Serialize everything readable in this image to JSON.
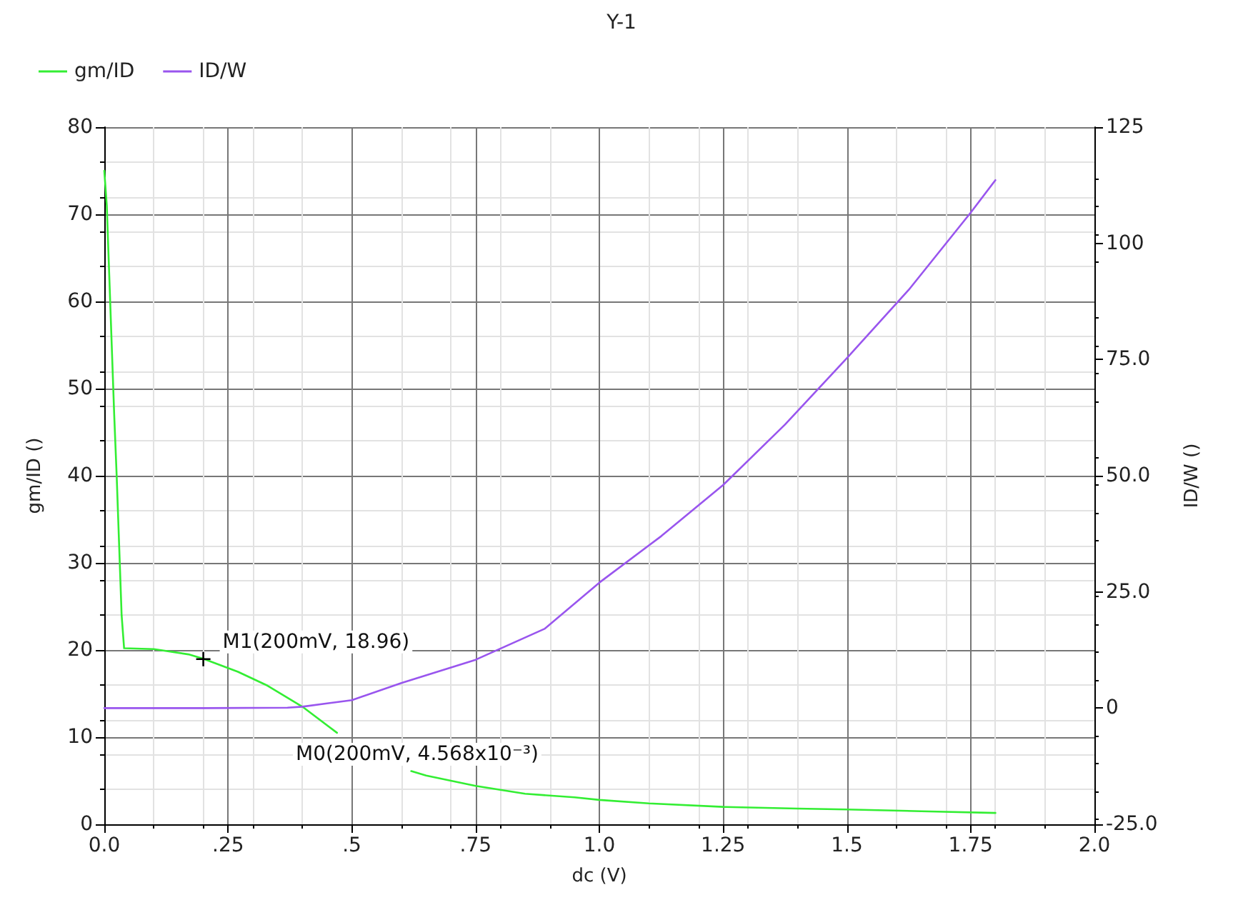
{
  "chart_data": {
    "type": "line",
    "title": "Y-1",
    "xlabel": "dc (V)",
    "ylabel": "gm/ID ()",
    "y2label": "ID/W ()",
    "xlim": [
      0,
      2
    ],
    "xticks": [
      {
        "value": 0,
        "label": "0.0"
      },
      {
        "value": 0.25,
        "label": ".25"
      },
      {
        "value": 0.5,
        "label": ".5"
      },
      {
        "value": 0.75,
        "label": ".75"
      },
      {
        "value": 1,
        "label": "1.0"
      },
      {
        "value": 1.25,
        "label": "1.25"
      },
      {
        "value": 1.5,
        "label": "1.5"
      },
      {
        "value": 1.75,
        "label": "1.75"
      },
      {
        "value": 2,
        "label": "2.0"
      }
    ],
    "ylim": [
      0,
      80
    ],
    "yticks": [
      0,
      10,
      20,
      30,
      40,
      50,
      60,
      70,
      80
    ],
    "y2lim": [
      -25,
      125
    ],
    "y2ticks": [
      {
        "value": -25,
        "label": "-25.0"
      },
      0,
      {
        "value": 25,
        "label": "25.0"
      },
      {
        "value": 50,
        "label": "50.0"
      },
      {
        "value": 75,
        "label": "75.0"
      },
      100,
      125
    ],
    "grid": true,
    "legend": "top left",
    "marker": "none",
    "line_style": "solid",
    "series": [
      {
        "name": "gm/ID",
        "color": "#33ee33",
        "x": [
          0,
          0.005,
          0.01,
          0.015,
          0.02,
          0.025,
          0.03,
          0.035,
          0.04,
          0.1,
          0.17,
          0.2,
          0.27,
          0.33,
          0.4,
          0.47,
          0.52,
          0.62,
          0.65,
          0.75,
          0.85,
          0.95,
          1.0,
          1.1,
          1.25,
          1.4,
          1.5,
          1.65,
          1.8
        ],
        "values": [
          75,
          71,
          63,
          55,
          47,
          40,
          32,
          24,
          20.2,
          20.1,
          19.5,
          19.0,
          17.5,
          15.9,
          13.5,
          10.5,
          null,
          6.1,
          5.6,
          4.4,
          3.5,
          3.1,
          2.8,
          2.4,
          2.0,
          1.8,
          1.7,
          1.5,
          1.3
        ]
      },
      {
        "name": "ID/W",
        "color": "#9955ee",
        "axis": "y2",
        "x": [
          0,
          0.2,
          0.37,
          0.4,
          0.45,
          0.5,
          0.6,
          0.75,
          0.89,
          1.0,
          1.125,
          1.25,
          1.375,
          1.5,
          1.625,
          1.75,
          1.8
        ],
        "values": [
          0,
          0,
          0.1,
          0.3,
          1,
          1.7,
          5.4,
          10.4,
          17.1,
          27,
          37,
          48,
          61,
          75.3,
          90,
          106.6,
          113.6
        ]
      }
    ],
    "annotations": [
      {
        "text": "M1(200mV, 18.96)",
        "x": 0.2,
        "y": 18.96
      },
      "M0(200mV, 4.568x10⁻³)"
    ]
  }
}
